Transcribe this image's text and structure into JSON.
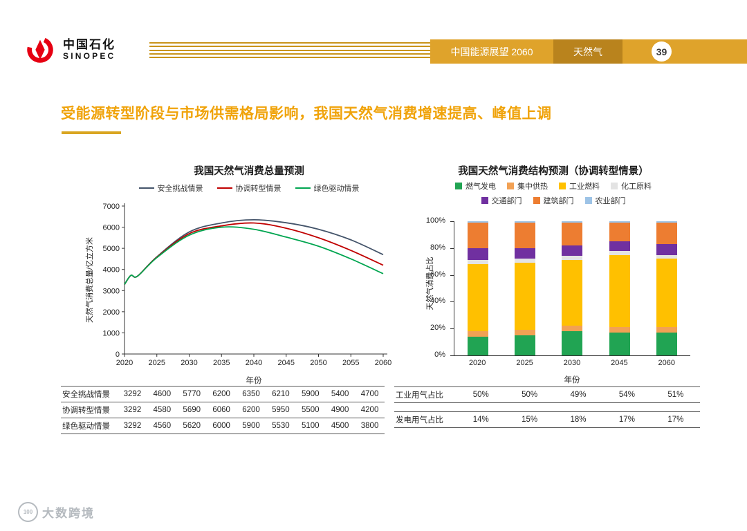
{
  "header": {
    "logo_cn": "中国石化",
    "logo_en": "SINOPEC",
    "banner_title": "中国能源展望 2060",
    "banner_section": "天然气",
    "page_number": "39"
  },
  "slide_title": "受能源转型阶段与市场供需格局影响，我国天然气消费增速提高、峰值上调",
  "watermark": {
    "badge": "100",
    "label": "大数跨境"
  },
  "colors": {
    "gold": "#DFA32B",
    "gold_dark": "#B9831D",
    "gold_line": "#C9941A",
    "title_gold": "#F0A30A",
    "logo_red": "#E60012"
  },
  "chart_data": [
    {
      "type": "line",
      "title": "我国天然气消费总量预测",
      "xlabel": "年份",
      "ylabel": "天然气消费总量/亿立方米",
      "xlim": [
        2020,
        2060
      ],
      "ylim": [
        0,
        7000
      ],
      "xticks": [
        2020,
        2025,
        2030,
        2035,
        2040,
        2045,
        2050,
        2055,
        2060
      ],
      "yticks": [
        0,
        1000,
        2000,
        3000,
        4000,
        5000,
        6000,
        7000
      ],
      "grid": false,
      "legend_position": "top",
      "x": [
        2020,
        2021,
        2022,
        2025,
        2030,
        2035,
        2040,
        2045,
        2050,
        2055,
        2060
      ],
      "series": [
        {
          "name": "安全挑战情景",
          "color": "#44546A",
          "values": [
            3292,
            3720,
            3680,
            4600,
            5770,
            6200,
            6350,
            6210,
            5900,
            5400,
            4700
          ]
        },
        {
          "name": "协调转型情景",
          "color": "#C00000",
          "values": [
            3292,
            3720,
            3680,
            4580,
            5690,
            6060,
            6200,
            5950,
            5500,
            4900,
            4200
          ]
        },
        {
          "name": "绿色驱动情景",
          "color": "#00A550",
          "values": [
            3292,
            3720,
            3680,
            4560,
            5620,
            6000,
            5900,
            5530,
            5100,
            4500,
            3800
          ]
        }
      ]
    },
    {
      "type": "stacked-bar-100",
      "title": "我国天然气消费结构预测（协调转型情景）",
      "xlabel": "年份",
      "ylabel": "天然气消费占比",
      "categories": [
        "2020",
        "2025",
        "2030",
        "2045",
        "2060"
      ],
      "yticks": [
        "0%",
        "20%",
        "40%",
        "60%",
        "80%",
        "100%"
      ],
      "legend_position": "top",
      "legend_rows": [
        [
          "燃气发电",
          "集中供热",
          "工业燃料",
          "化工原料"
        ],
        [
          "交通部门",
          "建筑部门",
          "农业部门"
        ]
      ],
      "series": [
        {
          "name": "燃气发电",
          "color": "#21A453",
          "values": [
            14,
            15,
            18,
            17,
            17
          ]
        },
        {
          "name": "集中供热",
          "color": "#F2A154",
          "values": [
            4,
            4,
            4,
            4,
            4
          ]
        },
        {
          "name": "工业燃料",
          "color": "#FFC000",
          "values": [
            50,
            50,
            49,
            54,
            51
          ]
        },
        {
          "name": "化工原料",
          "color": "#E3E3E3",
          "values": [
            3,
            3,
            3,
            3,
            3
          ]
        },
        {
          "name": "交通部门",
          "color": "#7030A0",
          "values": [
            9,
            8,
            8,
            7,
            8
          ]
        },
        {
          "name": "建筑部门",
          "color": "#ED7D31",
          "values": [
            19,
            19,
            17,
            14,
            16
          ]
        },
        {
          "name": "农业部门",
          "color": "#9DC3E6",
          "values": [
            1,
            1,
            1,
            1,
            1
          ]
        }
      ]
    }
  ],
  "left_table": {
    "rows": [
      {
        "label": "安全挑战情景",
        "values": [
          "3292",
          "4600",
          "5770",
          "6200",
          "6350",
          "6210",
          "5900",
          "5400",
          "4700"
        ]
      },
      {
        "label": "协调转型情景",
        "values": [
          "3292",
          "4580",
          "5690",
          "6060",
          "6200",
          "5950",
          "5500",
          "4900",
          "4200"
        ]
      },
      {
        "label": "绿色驱动情景",
        "values": [
          "3292",
          "4560",
          "5620",
          "6000",
          "5900",
          "5530",
          "5100",
          "4500",
          "3800"
        ]
      }
    ]
  },
  "right_tables": [
    {
      "label": "工业用气占比",
      "values": [
        "50%",
        "50%",
        "49%",
        "54%",
        "51%"
      ]
    },
    {
      "label": "发电用气占比",
      "values": [
        "14%",
        "15%",
        "18%",
        "17%",
        "17%"
      ]
    }
  ]
}
